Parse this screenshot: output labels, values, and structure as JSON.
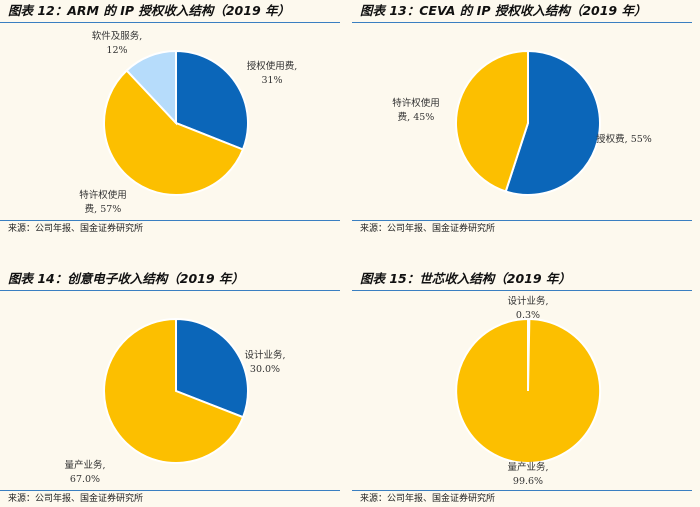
{
  "colors": {
    "blue": "#0b66b9",
    "gold": "#fcbf00",
    "light_blue": "#b6dcfb",
    "rule": "#3a7fc1"
  },
  "source_text": "来源：公司年报、国金证券研究所",
  "chart_data": [
    {
      "type": "pie",
      "title": "图表 12：ARM 的 IP 授权收入结构（2019 年）",
      "slices": [
        {
          "label_line1": "授权使用费,",
          "label_line2": "31%",
          "value": 31,
          "color": "#0b66b9"
        },
        {
          "label_line1": "特许权使用",
          "label_line2": "费, 57%",
          "value": 57,
          "color": "#fcbf00"
        },
        {
          "label_line1": "软件及服务,",
          "label_line2": "12%",
          "value": 12,
          "color": "#b6dcfb"
        }
      ]
    },
    {
      "type": "pie",
      "title": "图表 13：CEVA 的 IP 授权收入结构（2019 年）",
      "slices": [
        {
          "label_line1": "授权费, 55%",
          "label_line2": "",
          "value": 55,
          "color": "#0b66b9"
        },
        {
          "label_line1": "特许权使用",
          "label_line2": "费, 45%",
          "value": 45,
          "color": "#fcbf00"
        }
      ]
    },
    {
      "type": "pie",
      "title": "图表 14：创意电子收入结构（2019 年）",
      "slices": [
        {
          "label_line1": "设计业务,",
          "label_line2": "30.0%",
          "value": 30.0,
          "color": "#0b66b9"
        },
        {
          "label_line1": "量产业务,",
          "label_line2": "67.0%",
          "value": 67.0,
          "color": "#fcbf00"
        }
      ]
    },
    {
      "type": "pie",
      "title": "图表 15：世芯收入结构（2019 年）",
      "slices": [
        {
          "label_line1": "设计业务,",
          "label_line2": "0.3%",
          "value": 0.3,
          "color": "#0b66b9"
        },
        {
          "label_line1": "量产业务,",
          "label_line2": "99.6%",
          "value": 99.6,
          "color": "#fcbf00"
        }
      ]
    }
  ]
}
